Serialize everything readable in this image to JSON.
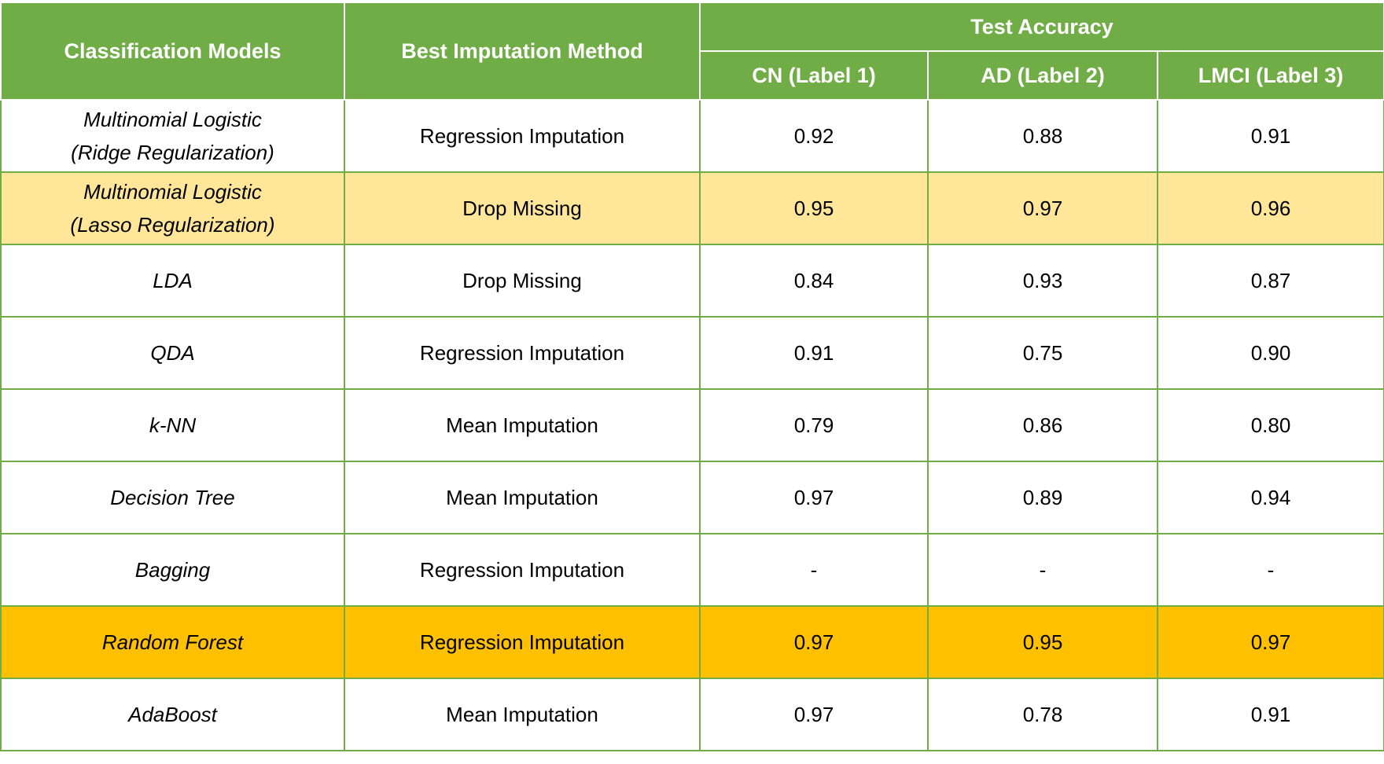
{
  "header": {
    "col_model": "Classification Models",
    "col_method": "Best Imputation Method",
    "group_accuracy": "Test Accuracy",
    "sub_cn": "CN (Label 1)",
    "sub_ad": "AD (Label 2)",
    "sub_lmci": "LMCI (Label 3)"
  },
  "colors": {
    "header_green": "#70ad47",
    "highlight_light": "#ffe699",
    "highlight_strong": "#ffc000",
    "dim_text": "#8c8c8c"
  },
  "rows": [
    {
      "model_line1": "Multinomial Logistic",
      "model_line2": "(Ridge Regularization)",
      "method": "Regression Imputation",
      "cn": "0.92",
      "ad": "0.88",
      "lmci": "0.91"
    },
    {
      "model_line1": "Multinomial Logistic",
      "model_line2": "(Lasso Regularization)",
      "method": "Drop Missing",
      "cn": "0.95",
      "ad": "0.97",
      "lmci": "0.96"
    },
    {
      "model_line1": "LDA",
      "model_line2": "",
      "method": "Drop Missing",
      "cn": "0.84",
      "ad": "0.93",
      "lmci": "0.87"
    },
    {
      "model_line1": "QDA",
      "model_line2": "",
      "method": "Regression Imputation",
      "cn": "0.91",
      "ad": "0.75",
      "lmci": "0.90"
    },
    {
      "model_line1": "k-NN",
      "model_line2": "",
      "method": "Mean Imputation",
      "cn": "0.79",
      "ad": "0.86",
      "lmci": "0.80"
    },
    {
      "model_line1": "Decision Tree",
      "model_line2": "",
      "method": "Mean Imputation",
      "cn": "0.97",
      "ad": "0.89",
      "lmci": "0.94"
    },
    {
      "model_line1": "Bagging",
      "model_line2": "",
      "method": "Regression Imputation",
      "cn": "-",
      "ad": "-",
      "lmci": "-"
    },
    {
      "model_line1": "Random Forest",
      "model_line2": "",
      "method": "Regression Imputation",
      "cn": "0.97",
      "ad": "0.95",
      "lmci": "0.97"
    },
    {
      "model_line1": "AdaBoost",
      "model_line2": "",
      "method": "Mean Imputation",
      "cn": "0.97",
      "ad": "0.78",
      "lmci": "0.91"
    }
  ]
}
